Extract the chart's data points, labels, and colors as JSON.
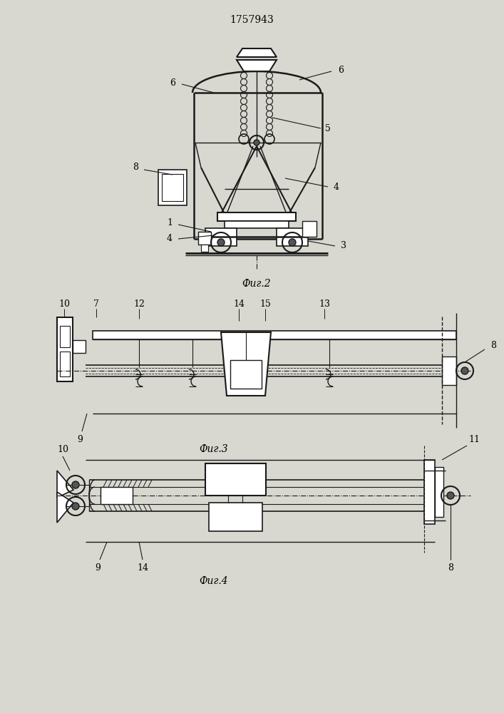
{
  "title": "1757943",
  "fig2_label": "Фиг.2",
  "fig3_label": "Фиг.3",
  "fig4_label": "Фиг.4",
  "bg_color": "#d8d8d0",
  "line_color": "#1a1a1a",
  "title_fontsize": 10,
  "label_fontsize": 10,
  "annotation_fontsize": 9
}
